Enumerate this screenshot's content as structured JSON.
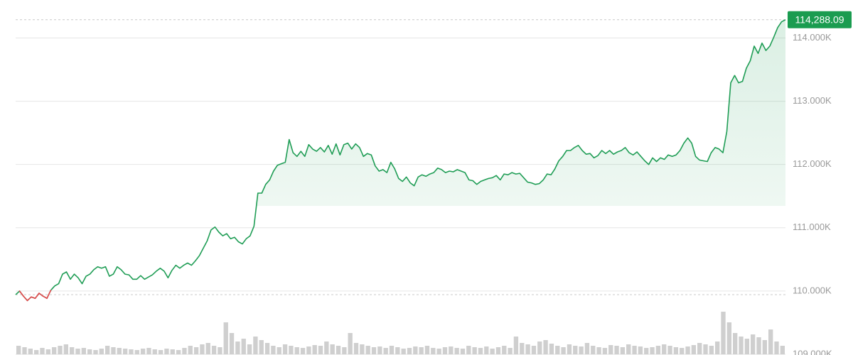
{
  "chart_data": {
    "type": "line",
    "series": [
      {
        "color": "#1f9d55",
        "down_color": "#e5484d",
        "values": [
          109942,
          110000,
          109919,
          109849,
          109907,
          109884,
          109965,
          109919,
          109884,
          110012,
          110081,
          110116,
          110267,
          110302,
          110186,
          110267,
          110209,
          110116,
          110233,
          110267,
          110337,
          110384,
          110360,
          110384,
          110233,
          110267,
          110384,
          110337,
          110267,
          110256,
          110186,
          110186,
          110244,
          110186,
          110221,
          110256,
          110314,
          110360,
          110314,
          110209,
          110326,
          110407,
          110360,
          110407,
          110442,
          110407,
          110477,
          110558,
          110674,
          110791,
          110965,
          111012,
          110930,
          110872,
          110907,
          110826,
          110849,
          110779,
          110744,
          110826,
          110872,
          111023,
          111547,
          111547,
          111686,
          111756,
          111895,
          111988,
          112012,
          112035,
          112395,
          112186,
          112128,
          112209,
          112128,
          112314,
          112244,
          112209,
          112268,
          112198,
          112302,
          112163,
          112326,
          112151,
          112314,
          112337,
          112244,
          112326,
          112268,
          112128,
          112174,
          112151,
          111977,
          111895,
          111919,
          111872,
          112035,
          111930,
          111779,
          111733,
          111802,
          111709,
          111663,
          111802,
          111837,
          111814,
          111849,
          111872,
          111942,
          111919,
          111872,
          111895,
          111884,
          111919,
          111895,
          111872,
          111756,
          111744,
          111686,
          111733,
          111756,
          111779,
          111791,
          111826,
          111756,
          111849,
          111837,
          111872,
          111849,
          111861,
          111791,
          111721,
          111709,
          111686,
          111698,
          111756,
          111849,
          111837,
          111930,
          112058,
          112128,
          112221,
          112221,
          112268,
          112302,
          112221,
          112163,
          112174,
          112105,
          112140,
          112221,
          112174,
          112221,
          112163,
          112198,
          112221,
          112268,
          112186,
          112151,
          112198,
          112128,
          112058,
          112000,
          112105,
          112047,
          112105,
          112081,
          112151,
          112128,
          112151,
          112221,
          112337,
          112419,
          112337,
          112128,
          112070,
          112058,
          112047,
          112186,
          112268,
          112244,
          112186,
          112523,
          113291,
          113407,
          113291,
          113314,
          113523,
          113640,
          113872,
          113756,
          113919,
          113802,
          113872,
          114012,
          114163,
          114256,
          114288.09
        ]
      }
    ],
    "volumes": [
      12,
      10,
      8,
      6,
      9,
      7,
      10,
      12,
      14,
      10,
      8,
      9,
      7,
      6,
      8,
      12,
      10,
      9,
      8,
      7,
      6,
      8,
      9,
      7,
      6,
      8,
      7,
      6,
      9,
      12,
      10,
      14,
      16,
      12,
      10,
      45,
      30,
      18,
      22,
      14,
      25,
      20,
      16,
      12,
      10,
      14,
      12,
      10,
      9,
      11,
      13,
      12,
      18,
      14,
      12,
      10,
      30,
      16,
      14,
      12,
      10,
      11,
      9,
      12,
      10,
      8,
      9,
      11,
      10,
      12,
      9,
      8,
      10,
      11,
      9,
      8,
      12,
      10,
      9,
      11,
      8,
      10,
      12,
      9,
      25,
      16,
      14,
      12,
      18,
      20,
      15,
      12,
      10,
      14,
      12,
      11,
      16,
      12,
      10,
      9,
      13,
      12,
      10,
      14,
      12,
      11,
      9,
      10,
      12,
      14,
      12,
      10,
      9,
      11,
      13,
      16,
      14,
      12,
      18,
      60,
      45,
      30,
      25,
      22,
      28,
      24,
      20,
      35,
      18,
      12
    ],
    "current_price": 114288.09,
    "current_price_label": "114,288.09",
    "ylim": [
      109000,
      114600
    ],
    "yticks": [
      {
        "value": 109000,
        "label": "109.000K"
      },
      {
        "value": 110000,
        "label": "110.000K"
      },
      {
        "value": 111000,
        "label": "111.000K"
      },
      {
        "value": 112000,
        "label": "112.000K"
      },
      {
        "value": 113000,
        "label": "113.000K"
      },
      {
        "value": 114000,
        "label": "114.000K"
      }
    ],
    "grid": true
  }
}
